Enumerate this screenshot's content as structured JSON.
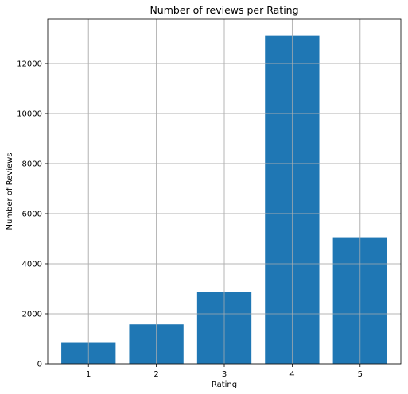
{
  "chart_data": {
    "type": "bar",
    "title": "Number of reviews per Rating",
    "xlabel": "Rating",
    "ylabel": "Number of Reviews",
    "categories": [
      "1",
      "2",
      "3",
      "4",
      "5"
    ],
    "values": [
      840,
      1580,
      2870,
      13120,
      5060
    ],
    "ylim": [
      0,
      13775
    ],
    "yticks": [
      0,
      2000,
      4000,
      6000,
      8000,
      10000,
      12000
    ],
    "grid": true,
    "bar_color": "#1f77b4",
    "grid_color": "#b0b0b0"
  }
}
